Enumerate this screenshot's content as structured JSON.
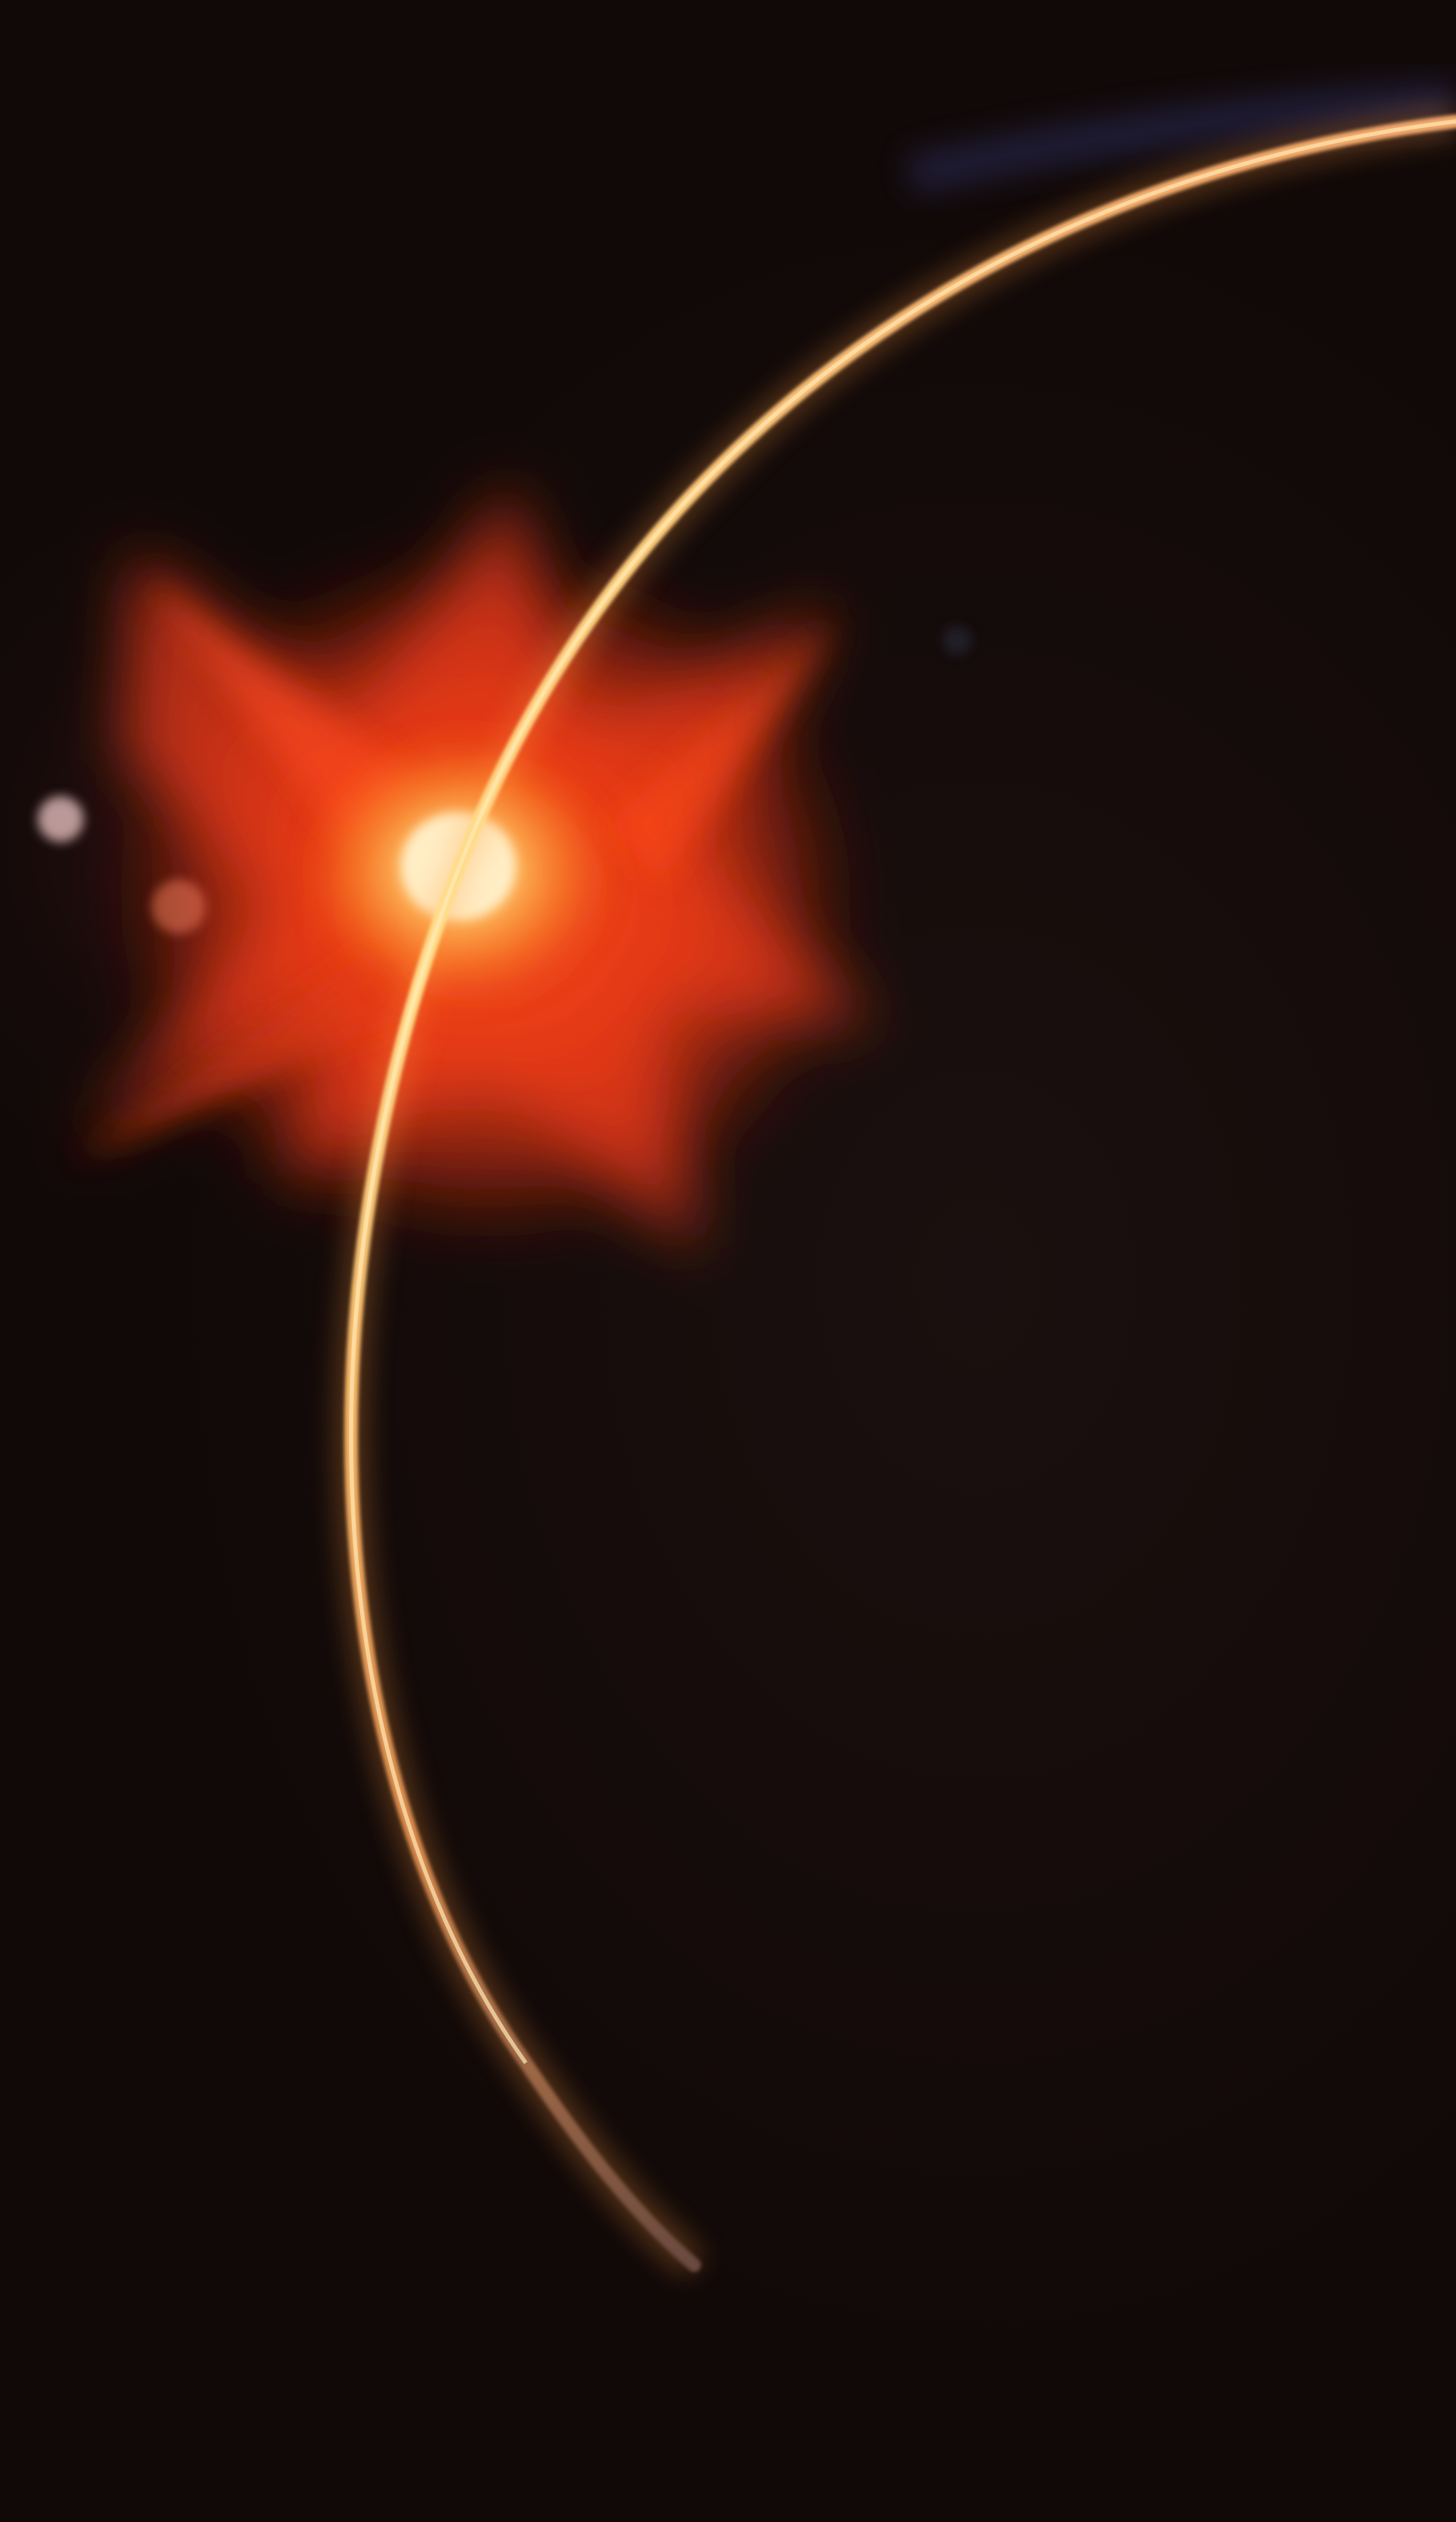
{
  "image": {
    "subject": "planetary-horizon-sunrise",
    "colors": {
      "space_background": "#140c0b",
      "planet_dark_side": "#150c0b",
      "flare_red": "#ff3a12",
      "flare_orange": "#ff6a1a",
      "sun_core": "#ffe6a0",
      "horizon_rim": "#ffc773",
      "atmosphere_blue": "#3a3f8a",
      "lens_spot": "#f0c8c8"
    }
  }
}
